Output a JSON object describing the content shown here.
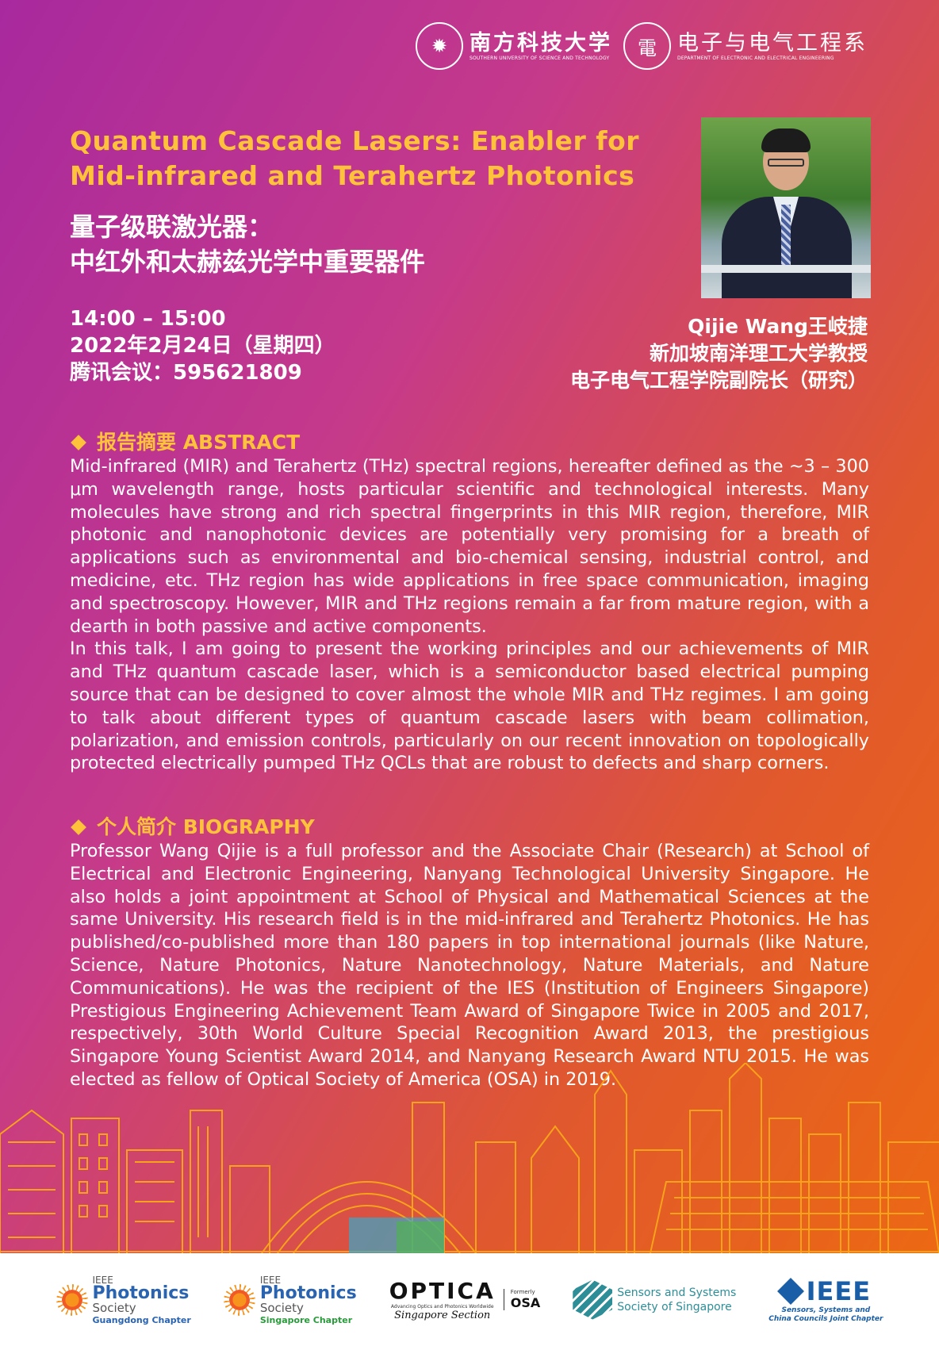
{
  "header": {
    "sustech_cn": "南方科技大学",
    "sustech_en": "SOUTHERN UNIVERSITY OF SCIENCE AND TECHNOLOGY",
    "dept_cn": "电子与电气工程系",
    "dept_en": "DEPARTMENT OF ELECTRONIC AND ELECTRICAL ENGINEERING"
  },
  "title": {
    "en_line1": "Quantum Cascade Lasers: Enabler for",
    "en_line2": "Mid-infrared and Terahertz Photonics",
    "cn_line1": "量子级联激光器：",
    "cn_line2": "中红外和太赫兹光学中重要器件"
  },
  "event": {
    "time": "14:00 – 15:00",
    "date": "2022年2月24日（星期四）",
    "meeting": "腾讯会议：595621809"
  },
  "speaker": {
    "name": "Qijie Wang王岐捷",
    "title1": "新加坡南洋理工大学教授",
    "title2": "电子电气工程学院副院长（研究）"
  },
  "abstract": {
    "heading": "报告摘要 ABSTRACT",
    "para1": "Mid-infrared (MIR) and Terahertz (THz) spectral regions, hereafter defined as the ~3 – 300 μm wavelength range, hosts particular scientific and technological interests. Many molecules have strong and rich spectral fingerprints in this MIR region, therefore, MIR photonic and nanophotonic devices are potentially very promising for a breath of applications such as environmental and bio-chemical sensing, industrial control, and medicine, etc. THz region has wide applications in free space communication, imaging and spectroscopy. However, MIR and THz regions remain a far from mature region, with a dearth in both passive and active components.",
    "para2": "In this talk, I am going to present the working principles and our achievements of MIR and THz quantum cascade laser, which is a semiconductor based electrical pumping source that can be designed to cover almost the whole MIR and THz regimes. I am going to talk about different types of quantum cascade lasers with beam collimation, polarization, and emission controls, particularly on our recent innovation on topologically protected electrically pumped THz QCLs that are robust to defects and sharp corners."
  },
  "biography": {
    "heading": "个人简介 BIOGRAPHY",
    "para": "Professor Wang Qijie is a full professor and the Associate Chair (Research) at School of Electrical and Electronic Engineering, Nanyang Technological University Singapore. He also holds a joint appointment at School of Physical and Mathematical Sciences at the same University. His research field is in the mid-infrared and Terahertz Photonics. He has published/co-published more than 180 papers in top international journals (like Nature, Science, Nature Photonics, Nature Nanotechnology, Nature Materials, and Nature Communications). He was the recipient of the IES (Institution of Engineers Singapore) Prestigious Engineering Achievement Team Award of Singapore Twice in 2005 and 2017, respectively, 30th World Culture Special Recognition Award 2013, the prestigious Singapore Young Scientist Award 2014, and Nanyang Research Award NTU 2015. He was elected as fellow of Optical Society of America (OSA) in 2019."
  },
  "footer": {
    "ps1": {
      "ieee": "IEEE",
      "photonics": "Photonics",
      "society": "Society",
      "chapter": "Guangdong Chapter"
    },
    "ps2": {
      "ieee": "IEEE",
      "photonics": "Photonics",
      "society": "Society",
      "chapter": "Singapore Chapter"
    },
    "optica": {
      "name": "OPTICA",
      "tagline": "Advancing Optics and Photonics Worldwide",
      "section": "Singapore Section",
      "formerly": "Formerly",
      "osa": "OSA"
    },
    "sss": {
      "line1": "Sensors and Systems",
      "line2": "Society of Singapore"
    },
    "ieee_cc": {
      "name": "IEEE",
      "line1": "Sensors, Systems and",
      "line2": "China Councils Joint Chapter"
    }
  },
  "colors": {
    "accent": "#ffc23a",
    "bg_left": "#a8299e",
    "bg_right": "#ee6a10"
  }
}
